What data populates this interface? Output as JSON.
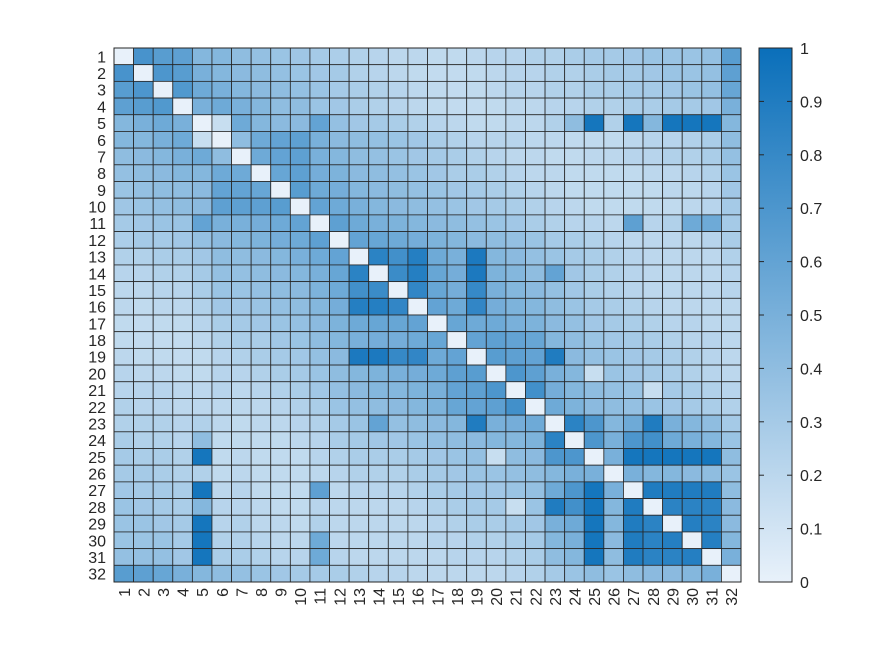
{
  "chart_data": {
    "type": "heatmap",
    "title": "",
    "xlabel": "",
    "ylabel": "",
    "x_categories": [
      "1",
      "2",
      "3",
      "4",
      "5",
      "6",
      "7",
      "8",
      "9",
      "10",
      "11",
      "12",
      "13",
      "14",
      "15",
      "16",
      "17",
      "18",
      "19",
      "20",
      "21",
      "22",
      "23",
      "24",
      "25",
      "26",
      "27",
      "28",
      "29",
      "30",
      "31",
      "32"
    ],
    "y_categories": [
      "1",
      "2",
      "3",
      "4",
      "5",
      "6",
      "7",
      "8",
      "9",
      "10",
      "11",
      "12",
      "13",
      "14",
      "15",
      "16",
      "17",
      "18",
      "19",
      "20",
      "21",
      "22",
      "23",
      "24",
      "25",
      "26",
      "27",
      "28",
      "29",
      "30",
      "31",
      "32"
    ],
    "value_range": [
      0,
      1
    ],
    "colormap": {
      "low": "#e8f1fa",
      "high": "#0a6fba"
    },
    "colorbar_ticks": [
      "0",
      "0.1",
      "0.2",
      "0.3",
      "0.4",
      "0.5",
      "0.6",
      "0.7",
      "0.8",
      "0.9",
      "1"
    ],
    "grid_color": "#262626",
    "values": [
      [
        0.0,
        0.72,
        0.65,
        0.62,
        0.45,
        0.45,
        0.4,
        0.38,
        0.35,
        0.33,
        0.3,
        0.27,
        0.25,
        0.22,
        0.2,
        0.2,
        0.18,
        0.18,
        0.2,
        0.22,
        0.22,
        0.25,
        0.25,
        0.28,
        0.3,
        0.3,
        0.32,
        0.35,
        0.35,
        0.35,
        0.38,
        0.65
      ],
      [
        0.72,
        0.0,
        0.7,
        0.65,
        0.5,
        0.45,
        0.42,
        0.4,
        0.38,
        0.35,
        0.32,
        0.3,
        0.25,
        0.22,
        0.2,
        0.18,
        0.17,
        0.17,
        0.18,
        0.2,
        0.22,
        0.22,
        0.25,
        0.25,
        0.28,
        0.3,
        0.3,
        0.32,
        0.35,
        0.35,
        0.38,
        0.62
      ],
      [
        0.65,
        0.7,
        0.0,
        0.68,
        0.55,
        0.5,
        0.45,
        0.42,
        0.4,
        0.38,
        0.35,
        0.3,
        0.28,
        0.25,
        0.22,
        0.2,
        0.18,
        0.17,
        0.18,
        0.2,
        0.22,
        0.22,
        0.25,
        0.25,
        0.28,
        0.28,
        0.3,
        0.3,
        0.32,
        0.35,
        0.38,
        0.58
      ],
      [
        0.62,
        0.65,
        0.68,
        0.0,
        0.5,
        0.55,
        0.5,
        0.45,
        0.4,
        0.4,
        0.35,
        0.32,
        0.28,
        0.25,
        0.22,
        0.2,
        0.18,
        0.17,
        0.17,
        0.18,
        0.2,
        0.2,
        0.22,
        0.22,
        0.25,
        0.25,
        0.28,
        0.28,
        0.3,
        0.3,
        0.32,
        0.5
      ],
      [
        0.45,
        0.5,
        0.55,
        0.5,
        0.0,
        0.15,
        0.55,
        0.45,
        0.42,
        0.42,
        0.6,
        0.38,
        0.32,
        0.3,
        0.28,
        0.25,
        0.22,
        0.2,
        0.18,
        0.18,
        0.2,
        0.2,
        0.25,
        0.4,
        0.95,
        0.25,
        0.95,
        0.45,
        0.95,
        0.95,
        0.95,
        0.45
      ],
      [
        0.45,
        0.45,
        0.5,
        0.55,
        0.15,
        0.0,
        0.4,
        0.55,
        0.6,
        0.62,
        0.5,
        0.42,
        0.4,
        0.38,
        0.35,
        0.32,
        0.28,
        0.25,
        0.22,
        0.22,
        0.22,
        0.2,
        0.2,
        0.18,
        0.18,
        0.18,
        0.2,
        0.22,
        0.22,
        0.25,
        0.28,
        0.4
      ],
      [
        0.4,
        0.42,
        0.45,
        0.5,
        0.55,
        0.4,
        0.0,
        0.55,
        0.6,
        0.62,
        0.5,
        0.45,
        0.4,
        0.38,
        0.35,
        0.32,
        0.3,
        0.28,
        0.25,
        0.22,
        0.2,
        0.2,
        0.18,
        0.18,
        0.2,
        0.2,
        0.22,
        0.22,
        0.25,
        0.25,
        0.28,
        0.38
      ],
      [
        0.38,
        0.4,
        0.42,
        0.45,
        0.45,
        0.55,
        0.55,
        0.0,
        0.58,
        0.62,
        0.52,
        0.48,
        0.42,
        0.4,
        0.38,
        0.35,
        0.32,
        0.28,
        0.28,
        0.25,
        0.22,
        0.2,
        0.2,
        0.18,
        0.18,
        0.18,
        0.18,
        0.2,
        0.2,
        0.22,
        0.25,
        0.35
      ],
      [
        0.35,
        0.38,
        0.4,
        0.4,
        0.42,
        0.6,
        0.6,
        0.58,
        0.0,
        0.65,
        0.55,
        0.52,
        0.45,
        0.42,
        0.4,
        0.38,
        0.35,
        0.32,
        0.3,
        0.28,
        0.25,
        0.22,
        0.2,
        0.18,
        0.18,
        0.18,
        0.18,
        0.18,
        0.2,
        0.2,
        0.22,
        0.32
      ],
      [
        0.33,
        0.35,
        0.38,
        0.4,
        0.42,
        0.62,
        0.62,
        0.62,
        0.65,
        0.0,
        0.6,
        0.55,
        0.5,
        0.45,
        0.42,
        0.4,
        0.38,
        0.35,
        0.32,
        0.3,
        0.28,
        0.25,
        0.22,
        0.2,
        0.18,
        0.18,
        0.18,
        0.18,
        0.18,
        0.2,
        0.22,
        0.3
      ],
      [
        0.3,
        0.32,
        0.35,
        0.35,
        0.6,
        0.5,
        0.5,
        0.52,
        0.55,
        0.6,
        0.0,
        0.62,
        0.55,
        0.5,
        0.48,
        0.45,
        0.42,
        0.4,
        0.38,
        0.35,
        0.32,
        0.28,
        0.25,
        0.22,
        0.22,
        0.2,
        0.62,
        0.22,
        0.25,
        0.55,
        0.55,
        0.3
      ],
      [
        0.27,
        0.3,
        0.3,
        0.32,
        0.38,
        0.42,
        0.45,
        0.48,
        0.52,
        0.55,
        0.62,
        0.0,
        0.6,
        0.58,
        0.55,
        0.52,
        0.48,
        0.45,
        0.42,
        0.4,
        0.38,
        0.35,
        0.3,
        0.28,
        0.25,
        0.22,
        0.2,
        0.2,
        0.2,
        0.2,
        0.22,
        0.28
      ],
      [
        0.25,
        0.25,
        0.28,
        0.28,
        0.32,
        0.4,
        0.4,
        0.42,
        0.45,
        0.5,
        0.55,
        0.6,
        0.0,
        0.85,
        0.75,
        0.88,
        0.55,
        0.5,
        0.92,
        0.45,
        0.42,
        0.38,
        0.35,
        0.3,
        0.28,
        0.25,
        0.22,
        0.2,
        0.2,
        0.2,
        0.2,
        0.25
      ],
      [
        0.22,
        0.22,
        0.25,
        0.25,
        0.3,
        0.38,
        0.38,
        0.4,
        0.42,
        0.45,
        0.5,
        0.58,
        0.85,
        0.0,
        0.78,
        0.88,
        0.58,
        0.52,
        0.92,
        0.48,
        0.45,
        0.4,
        0.6,
        0.32,
        0.28,
        0.25,
        0.22,
        0.2,
        0.2,
        0.2,
        0.2,
        0.22
      ],
      [
        0.2,
        0.2,
        0.22,
        0.22,
        0.28,
        0.35,
        0.35,
        0.38,
        0.4,
        0.42,
        0.48,
        0.55,
        0.75,
        0.78,
        0.0,
        0.82,
        0.58,
        0.52,
        0.8,
        0.5,
        0.45,
        0.42,
        0.38,
        0.32,
        0.28,
        0.25,
        0.22,
        0.2,
        0.2,
        0.2,
        0.2,
        0.22
      ],
      [
        0.2,
        0.18,
        0.2,
        0.2,
        0.25,
        0.32,
        0.32,
        0.35,
        0.38,
        0.4,
        0.45,
        0.52,
        0.88,
        0.88,
        0.82,
        0.0,
        0.6,
        0.55,
        0.82,
        0.52,
        0.48,
        0.45,
        0.4,
        0.35,
        0.3,
        0.28,
        0.25,
        0.22,
        0.2,
        0.2,
        0.2,
        0.2
      ],
      [
        0.18,
        0.17,
        0.18,
        0.18,
        0.22,
        0.28,
        0.3,
        0.32,
        0.35,
        0.38,
        0.42,
        0.48,
        0.55,
        0.58,
        0.58,
        0.6,
        0.0,
        0.58,
        0.55,
        0.55,
        0.5,
        0.48,
        0.42,
        0.38,
        0.32,
        0.3,
        0.28,
        0.25,
        0.22,
        0.22,
        0.2,
        0.2
      ],
      [
        0.18,
        0.17,
        0.17,
        0.17,
        0.2,
        0.25,
        0.28,
        0.28,
        0.32,
        0.35,
        0.4,
        0.45,
        0.5,
        0.52,
        0.52,
        0.55,
        0.58,
        0.0,
        0.6,
        0.62,
        0.6,
        0.58,
        0.45,
        0.4,
        0.35,
        0.32,
        0.3,
        0.28,
        0.25,
        0.22,
        0.22,
        0.2
      ],
      [
        0.2,
        0.18,
        0.18,
        0.17,
        0.18,
        0.22,
        0.25,
        0.28,
        0.3,
        0.32,
        0.38,
        0.42,
        0.92,
        0.92,
        0.8,
        0.82,
        0.55,
        0.6,
        0.0,
        0.65,
        0.62,
        0.6,
        0.9,
        0.42,
        0.38,
        0.35,
        0.32,
        0.3,
        0.28,
        0.25,
        0.22,
        0.2
      ],
      [
        0.22,
        0.2,
        0.2,
        0.18,
        0.18,
        0.22,
        0.22,
        0.25,
        0.28,
        0.3,
        0.35,
        0.4,
        0.45,
        0.48,
        0.5,
        0.52,
        0.55,
        0.62,
        0.65,
        0.0,
        0.7,
        0.62,
        0.5,
        0.45,
        0.15,
        0.35,
        0.32,
        0.3,
        0.28,
        0.25,
        0.22,
        0.2
      ],
      [
        0.22,
        0.22,
        0.22,
        0.2,
        0.2,
        0.22,
        0.2,
        0.22,
        0.25,
        0.28,
        0.32,
        0.38,
        0.42,
        0.45,
        0.45,
        0.48,
        0.5,
        0.6,
        0.62,
        0.7,
        0.0,
        0.75,
        0.52,
        0.45,
        0.4,
        0.38,
        0.35,
        0.15,
        0.3,
        0.28,
        0.25,
        0.22
      ],
      [
        0.25,
        0.22,
        0.22,
        0.2,
        0.2,
        0.2,
        0.2,
        0.2,
        0.22,
        0.25,
        0.28,
        0.35,
        0.38,
        0.4,
        0.42,
        0.45,
        0.48,
        0.58,
        0.6,
        0.62,
        0.75,
        0.0,
        0.55,
        0.48,
        0.42,
        0.4,
        0.38,
        0.35,
        0.32,
        0.3,
        0.28,
        0.25
      ],
      [
        0.25,
        0.25,
        0.25,
        0.22,
        0.25,
        0.2,
        0.18,
        0.2,
        0.2,
        0.22,
        0.25,
        0.3,
        0.35,
        0.6,
        0.38,
        0.4,
        0.42,
        0.45,
        0.9,
        0.5,
        0.52,
        0.55,
        0.0,
        0.85,
        0.7,
        0.45,
        0.55,
        0.9,
        0.5,
        0.45,
        0.4,
        0.3
      ],
      [
        0.28,
        0.25,
        0.25,
        0.22,
        0.4,
        0.18,
        0.18,
        0.18,
        0.18,
        0.2,
        0.22,
        0.28,
        0.3,
        0.32,
        0.32,
        0.35,
        0.38,
        0.4,
        0.42,
        0.45,
        0.45,
        0.48,
        0.85,
        0.0,
        0.7,
        0.5,
        0.7,
        0.75,
        0.55,
        0.5,
        0.45,
        0.35
      ],
      [
        0.3,
        0.28,
        0.28,
        0.25,
        0.95,
        0.18,
        0.2,
        0.18,
        0.18,
        0.18,
        0.22,
        0.25,
        0.28,
        0.28,
        0.28,
        0.3,
        0.32,
        0.35,
        0.38,
        0.15,
        0.4,
        0.42,
        0.7,
        0.7,
        0.0,
        0.5,
        0.95,
        0.95,
        0.95,
        0.95,
        0.95,
        0.4
      ],
      [
        0.3,
        0.3,
        0.28,
        0.25,
        0.25,
        0.18,
        0.2,
        0.18,
        0.18,
        0.18,
        0.2,
        0.22,
        0.25,
        0.25,
        0.25,
        0.28,
        0.3,
        0.32,
        0.35,
        0.35,
        0.38,
        0.4,
        0.45,
        0.5,
        0.5,
        0.0,
        0.5,
        0.45,
        0.45,
        0.42,
        0.4,
        0.35
      ],
      [
        0.32,
        0.3,
        0.3,
        0.28,
        0.95,
        0.2,
        0.22,
        0.18,
        0.18,
        0.18,
        0.62,
        0.2,
        0.22,
        0.22,
        0.22,
        0.25,
        0.28,
        0.3,
        0.32,
        0.32,
        0.35,
        0.38,
        0.55,
        0.7,
        0.95,
        0.5,
        0.0,
        0.9,
        0.9,
        0.9,
        0.9,
        0.4
      ],
      [
        0.35,
        0.32,
        0.3,
        0.28,
        0.45,
        0.22,
        0.22,
        0.2,
        0.18,
        0.18,
        0.22,
        0.2,
        0.2,
        0.2,
        0.2,
        0.22,
        0.25,
        0.28,
        0.3,
        0.3,
        0.15,
        0.35,
        0.9,
        0.75,
        0.95,
        0.45,
        0.9,
        0.0,
        0.85,
        0.85,
        0.85,
        0.42
      ],
      [
        0.35,
        0.35,
        0.32,
        0.3,
        0.95,
        0.22,
        0.25,
        0.2,
        0.2,
        0.18,
        0.25,
        0.2,
        0.2,
        0.2,
        0.2,
        0.2,
        0.22,
        0.25,
        0.28,
        0.28,
        0.3,
        0.32,
        0.5,
        0.55,
        0.95,
        0.45,
        0.9,
        0.85,
        0.0,
        0.88,
        0.85,
        0.42
      ],
      [
        0.35,
        0.35,
        0.35,
        0.3,
        0.95,
        0.25,
        0.25,
        0.22,
        0.2,
        0.2,
        0.55,
        0.2,
        0.2,
        0.2,
        0.2,
        0.2,
        0.22,
        0.22,
        0.25,
        0.25,
        0.28,
        0.3,
        0.45,
        0.5,
        0.95,
        0.42,
        0.9,
        0.85,
        0.88,
        0.0,
        0.88,
        0.45
      ],
      [
        0.38,
        0.38,
        0.38,
        0.32,
        0.95,
        0.28,
        0.28,
        0.25,
        0.22,
        0.22,
        0.55,
        0.22,
        0.2,
        0.2,
        0.2,
        0.2,
        0.2,
        0.22,
        0.22,
        0.22,
        0.25,
        0.28,
        0.4,
        0.45,
        0.95,
        0.4,
        0.9,
        0.85,
        0.85,
        0.88,
        0.0,
        0.5
      ],
      [
        0.65,
        0.62,
        0.58,
        0.5,
        0.45,
        0.4,
        0.38,
        0.35,
        0.32,
        0.3,
        0.3,
        0.28,
        0.25,
        0.22,
        0.22,
        0.2,
        0.2,
        0.2,
        0.2,
        0.2,
        0.22,
        0.25,
        0.3,
        0.35,
        0.4,
        0.35,
        0.4,
        0.42,
        0.42,
        0.45,
        0.5,
        0.0
      ]
    ]
  }
}
